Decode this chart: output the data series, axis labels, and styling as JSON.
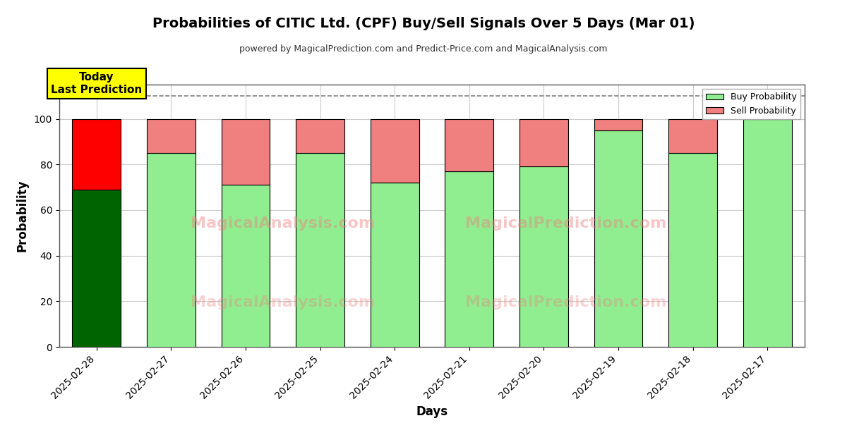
{
  "title": "Probabilities of CITIC Ltd. (CPF) Buy/Sell Signals Over 5 Days (Mar 01)",
  "subtitle": "powered by MagicalPrediction.com and Predict-Price.com and MagicalAnalysis.com",
  "xlabel": "Days",
  "ylabel": "Probability",
  "categories": [
    "2025-02-28",
    "2025-02-27",
    "2025-02-26",
    "2025-02-25",
    "2025-02-24",
    "2025-02-21",
    "2025-02-20",
    "2025-02-19",
    "2025-02-18",
    "2025-02-17"
  ],
  "buy_values": [
    69,
    85,
    71,
    85,
    72,
    77,
    79,
    95,
    85,
    100
  ],
  "sell_values": [
    31,
    15,
    29,
    15,
    28,
    23,
    21,
    5,
    15,
    0
  ],
  "buy_colors": [
    "#006400",
    "#90EE90",
    "#90EE90",
    "#90EE90",
    "#90EE90",
    "#90EE90",
    "#90EE90",
    "#90EE90",
    "#90EE90",
    "#90EE90"
  ],
  "sell_colors": [
    "#FF0000",
    "#F08080",
    "#F08080",
    "#F08080",
    "#F08080",
    "#F08080",
    "#F08080",
    "#F08080",
    "#F08080",
    "#F08080"
  ],
  "legend_buy_color": "#90EE90",
  "legend_sell_color": "#F08080",
  "today_box_color": "#FFFF00",
  "today_text": "Today\nLast Prediction",
  "dashed_line_y": 110,
  "ylim": [
    0,
    115
  ],
  "yticks": [
    0,
    20,
    40,
    60,
    80,
    100
  ],
  "background_color": "#ffffff",
  "grid_color": "#cccccc",
  "bar_edge_color": "#000000",
  "bar_width": 0.65
}
